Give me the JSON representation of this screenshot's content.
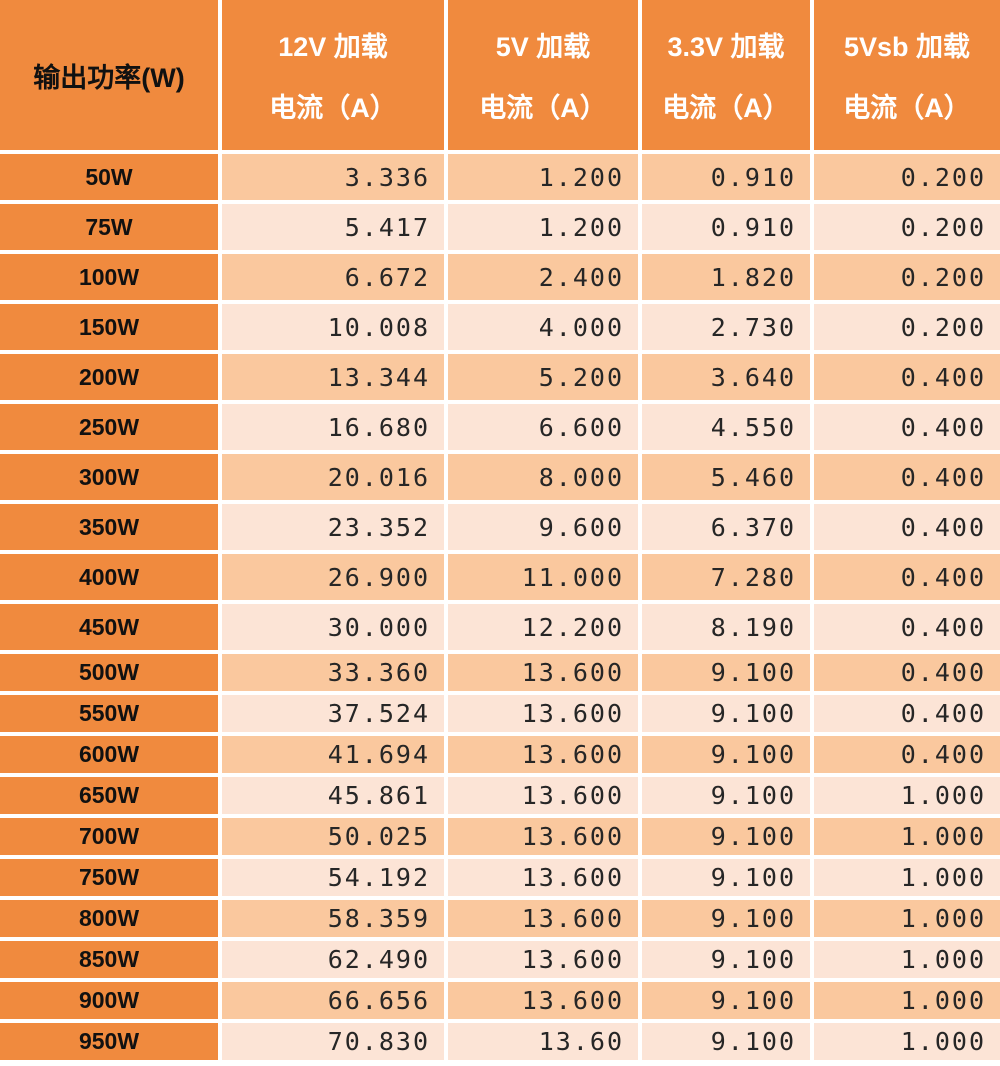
{
  "colors": {
    "orange": "#F08A3E",
    "row_dark": "#FAC89E",
    "row_light": "#FCE4D6",
    "header_text": "#FFFFFF",
    "label_text": "#111111",
    "value_text": "#262626"
  },
  "table": {
    "corner_header": "输出功率(W)",
    "column_headers": [
      {
        "line1": "12V 加载",
        "line2": "电流（A）"
      },
      {
        "line1": "5V 加载",
        "line2": "电流（A）"
      },
      {
        "line1": "3.3V 加载",
        "line2": "电流（A）"
      },
      {
        "line1": "5Vsb 加载",
        "line2": "电流（A）"
      }
    ],
    "rows": [
      {
        "label": "50W",
        "values": [
          "3.336",
          "1.200",
          "0.910",
          "0.200"
        ]
      },
      {
        "label": "75W",
        "values": [
          "5.417",
          "1.200",
          "0.910",
          "0.200"
        ]
      },
      {
        "label": "100W",
        "values": [
          "6.672",
          "2.400",
          "1.820",
          "0.200"
        ]
      },
      {
        "label": "150W",
        "values": [
          "10.008",
          "4.000",
          "2.730",
          "0.200"
        ]
      },
      {
        "label": "200W",
        "values": [
          "13.344",
          "5.200",
          "3.640",
          "0.400"
        ]
      },
      {
        "label": "250W",
        "values": [
          "16.680",
          "6.600",
          "4.550",
          "0.400"
        ]
      },
      {
        "label": "300W",
        "values": [
          "20.016",
          "8.000",
          "5.460",
          "0.400"
        ]
      },
      {
        "label": "350W",
        "values": [
          "23.352",
          "9.600",
          "6.370",
          "0.400"
        ]
      },
      {
        "label": "400W",
        "values": [
          "26.900",
          "11.000",
          "7.280",
          "0.400"
        ]
      },
      {
        "label": "450W",
        "values": [
          "30.000",
          "12.200",
          "8.190",
          "0.400"
        ]
      },
      {
        "label": "500W",
        "values": [
          "33.360",
          "13.600",
          "9.100",
          "0.400"
        ]
      },
      {
        "label": "550W",
        "values": [
          "37.524",
          "13.600",
          "9.100",
          "0.400"
        ]
      },
      {
        "label": "600W",
        "values": [
          "41.694",
          "13.600",
          "9.100",
          "0.400"
        ]
      },
      {
        "label": "650W",
        "values": [
          "45.861",
          "13.600",
          "9.100",
          "1.000"
        ]
      },
      {
        "label": "700W",
        "values": [
          "50.025",
          "13.600",
          "9.100",
          "1.000"
        ]
      },
      {
        "label": "750W",
        "values": [
          "54.192",
          "13.600",
          "9.100",
          "1.000"
        ]
      },
      {
        "label": "800W",
        "values": [
          "58.359",
          "13.600",
          "9.100",
          "1.000"
        ]
      },
      {
        "label": "850W",
        "values": [
          "62.490",
          "13.600",
          "9.100",
          "1.000"
        ]
      },
      {
        "label": "900W",
        "values": [
          "66.656",
          "13.600",
          "9.100",
          "1.000"
        ]
      },
      {
        "label": "950W",
        "values": [
          "70.830",
          "13.60",
          "9.100",
          "1.000"
        ]
      }
    ]
  },
  "chart_data": {
    "type": "table",
    "title": "",
    "columns": [
      "输出功率(W)",
      "12V 加载电流（A）",
      "5V 加载电流（A）",
      "3.3V 加载电流（A）",
      "5Vsb 加载电流（A）"
    ],
    "rows": [
      [
        "50W",
        3.336,
        1.2,
        0.91,
        0.2
      ],
      [
        "75W",
        5.417,
        1.2,
        0.91,
        0.2
      ],
      [
        "100W",
        6.672,
        2.4,
        1.82,
        0.2
      ],
      [
        "150W",
        10.008,
        4.0,
        2.73,
        0.2
      ],
      [
        "200W",
        13.344,
        5.2,
        3.64,
        0.4
      ],
      [
        "250W",
        16.68,
        6.6,
        4.55,
        0.4
      ],
      [
        "300W",
        20.016,
        8.0,
        5.46,
        0.4
      ],
      [
        "350W",
        23.352,
        9.6,
        6.37,
        0.4
      ],
      [
        "400W",
        26.9,
        11.0,
        7.28,
        0.4
      ],
      [
        "450W",
        30.0,
        12.2,
        8.19,
        0.4
      ],
      [
        "500W",
        33.36,
        13.6,
        9.1,
        0.4
      ],
      [
        "550W",
        37.524,
        13.6,
        9.1,
        0.4
      ],
      [
        "600W",
        41.694,
        13.6,
        9.1,
        0.4
      ],
      [
        "650W",
        45.861,
        13.6,
        9.1,
        1.0
      ],
      [
        "700W",
        50.025,
        13.6,
        9.1,
        1.0
      ],
      [
        "750W",
        54.192,
        13.6,
        9.1,
        1.0
      ],
      [
        "800W",
        58.359,
        13.6,
        9.1,
        1.0
      ],
      [
        "850W",
        62.49,
        13.6,
        9.1,
        1.0
      ],
      [
        "900W",
        66.656,
        13.6,
        9.1,
        1.0
      ],
      [
        "950W",
        70.83,
        13.6,
        9.1,
        1.0
      ]
    ],
    "layout": {
      "header_background": "#F08A3E",
      "row_alternate_backgrounds": [
        "#FAC89E",
        "#FCE4D6"
      ],
      "gridlines": "white"
    }
  }
}
